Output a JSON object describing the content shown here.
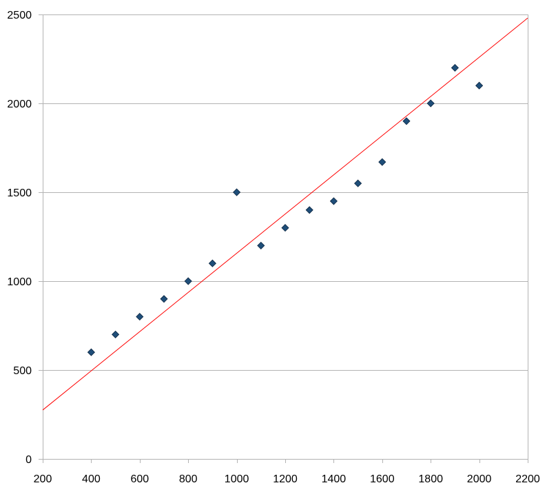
{
  "chart_data": {
    "type": "scatter",
    "title": "",
    "xlabel": "",
    "ylabel": "",
    "xlim": [
      200,
      2200
    ],
    "ylim": [
      0,
      2500
    ],
    "x_ticks": [
      200,
      400,
      600,
      800,
      1000,
      1200,
      1400,
      1600,
      1800,
      2000,
      2200
    ],
    "y_ticks": [
      0,
      500,
      1000,
      1500,
      2000,
      2500
    ],
    "x_tick_labels": [
      "200",
      "400",
      "600",
      "800",
      "1000",
      "1200",
      "1400",
      "1600",
      "1800",
      "2000",
      "2200"
    ],
    "y_tick_labels": [
      "0",
      "500",
      "1000",
      "1500",
      "2000",
      "2500"
    ],
    "grid": "horizontal",
    "legend": "none",
    "series": [
      {
        "marker": "diamond",
        "color": "#1f4e79",
        "x": [
          400,
          500,
          600,
          700,
          800,
          900,
          1000,
          1100,
          1200,
          1300,
          1400,
          1500,
          1600,
          1700,
          1800,
          1900,
          2000
        ],
        "y": [
          600,
          700,
          800,
          900,
          1000,
          1100,
          1500,
          1200,
          1300,
          1400,
          1450,
          1550,
          1670,
          1900,
          2000,
          2200,
          2100
        ]
      }
    ],
    "trendline": {
      "type": "linear",
      "color": "#ff0000",
      "x": [
        200,
        2200
      ],
      "y": [
        275,
        2480
      ]
    }
  }
}
